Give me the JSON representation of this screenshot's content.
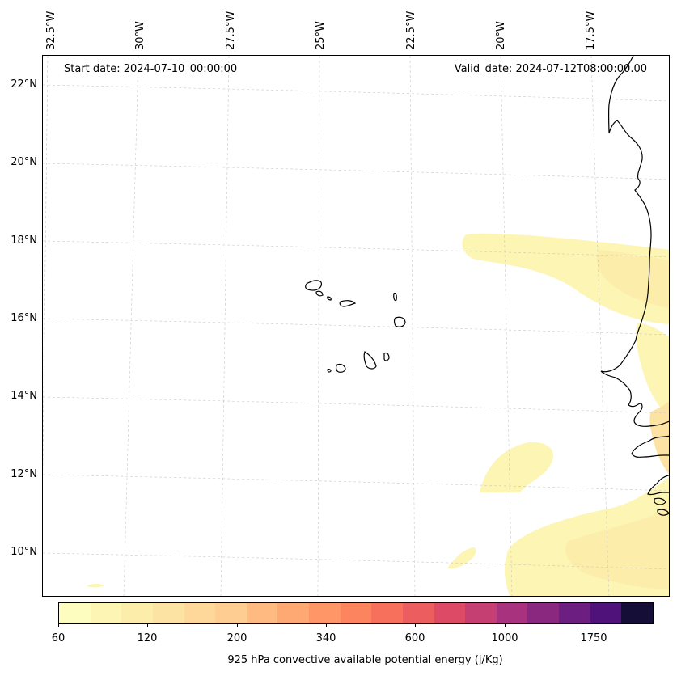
{
  "map": {
    "start_date": "Start date: 2024-07-10_00:00:00",
    "valid_date": "Valid_date: 2024-07-12T08:00:00.00",
    "lon_labels": [
      "32.5°W",
      "30°W",
      "27.5°W",
      "25°W",
      "22.5°W",
      "20°W",
      "17.5°W"
    ],
    "lat_labels": [
      "22°N",
      "20°N",
      "18°N",
      "16°N",
      "14°N",
      "12°N",
      "10°N"
    ],
    "gridlines": true,
    "coastline_color": "#000000"
  },
  "colorbar": {
    "label": "925 hPa convective available potential energy (j/Kg)",
    "ticks": [
      "60",
      "120",
      "200",
      "340",
      "600",
      "1000",
      "1750"
    ],
    "colors": [
      "#fcfdbf",
      "#fcf5b3",
      "#fdedab",
      "#fde3a3",
      "#fed89a",
      "#fecd91",
      "#feba80",
      "#fea873",
      "#fe9668",
      "#fc8560",
      "#f7705c",
      "#ec5d60",
      "#dc4a66",
      "#c63f73",
      "#a8327d",
      "#8a2880",
      "#6d1f81",
      "#4f127b",
      "#150e37"
    ]
  }
}
